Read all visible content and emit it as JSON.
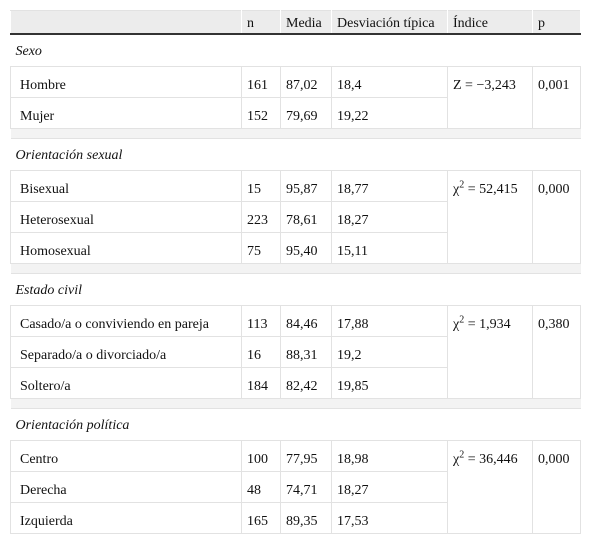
{
  "table": {
    "header": [
      "n",
      "Media",
      "Desviación típica",
      "Índice",
      "p"
    ],
    "sections": [
      {
        "title": "Sexo",
        "rows": [
          [
            "Hombre",
            "161",
            "87,02",
            "18,4"
          ],
          [
            "Mujer",
            "152",
            "79,69",
            "19,22"
          ]
        ],
        "index": {
          "prefix": "Z = −3,243"
        },
        "p": "0,001"
      },
      {
        "title": "Orientación sexual",
        "rows": [
          [
            "Bisexual",
            "15",
            "95,87",
            "18,77"
          ],
          [
            "Heterosexual",
            "223",
            "78,61",
            "18,27"
          ],
          [
            "Homosexual",
            "75",
            "95,40",
            "15,11"
          ]
        ],
        "index": {
          "prefix": "χ",
          "sup": "2",
          "rest": " = 52,415"
        },
        "p": "0,000"
      },
      {
        "title": "Estado civil",
        "rows": [
          [
            "Casado/a o conviviendo en pareja",
            "113",
            "84,46",
            "17,88"
          ],
          [
            "Separado/a o divorciado/a",
            "16",
            "88,31",
            "19,2"
          ],
          [
            "Soltero/a",
            "184",
            "82,42",
            "19,85"
          ]
        ],
        "index": {
          "prefix": "χ",
          "sup": "2",
          "rest": " = 1,934"
        },
        "p": "0,380"
      },
      {
        "title": "Orientación política",
        "rows": [
          [
            "Centro",
            "100",
            "77,95",
            "18,98"
          ],
          [
            "Derecha",
            "48",
            "74,71",
            "18,27"
          ],
          [
            "Izquierda",
            "165",
            "89,35",
            "17,53"
          ]
        ],
        "index": {
          "prefix": "χ",
          "sup": "2",
          "rest": " = 36,446"
        },
        "p": "0,000"
      }
    ]
  }
}
